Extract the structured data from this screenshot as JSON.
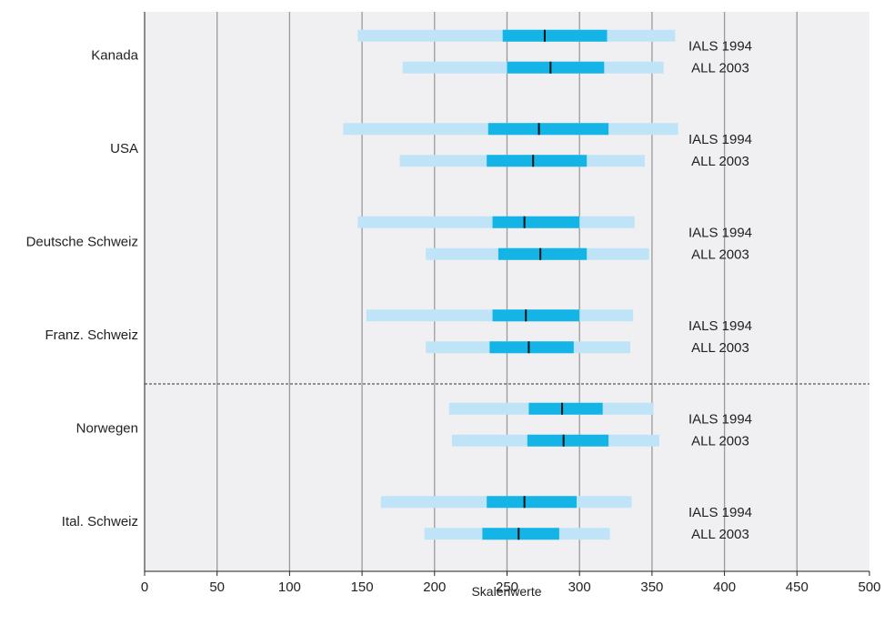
{
  "chart_data": {
    "type": "bar",
    "orientation": "horizontal",
    "xlabel": "Skalenwerte",
    "xlim": [
      0,
      500
    ],
    "xticks": [
      0,
      50,
      100,
      150,
      200,
      250,
      300,
      350,
      400,
      450,
      500
    ],
    "grid": true,
    "series_names": [
      "IALS 1994",
      "ALL 2003"
    ],
    "categories": [
      "Kanada",
      "USA",
      "Deutsche Schweiz",
      "Franz. Schweiz",
      "Norwegen",
      "Ital. Schweiz"
    ],
    "separator_after": "Franz. Schweiz",
    "colors": {
      "background": "#f0f0f2",
      "outer_range": "#bfe4f7",
      "inner_range": "#14b4e6",
      "median": "#111111",
      "grid": "#9a9a9a"
    },
    "groups": [
      {
        "category": "Kanada",
        "rows": [
          {
            "series": "IALS 1994",
            "p5": 147,
            "p25": 247,
            "median": 276,
            "p75": 319,
            "p95": 366
          },
          {
            "series": "ALL 2003",
            "p5": 178,
            "p25": 250,
            "median": 280,
            "p75": 317,
            "p95": 358
          }
        ]
      },
      {
        "category": "USA",
        "rows": [
          {
            "series": "IALS 1994",
            "p5": 137,
            "p25": 237,
            "median": 272,
            "p75": 320,
            "p95": 368
          },
          {
            "series": "ALL 2003",
            "p5": 176,
            "p25": 236,
            "median": 268,
            "p75": 305,
            "p95": 345
          }
        ]
      },
      {
        "category": "Deutsche Schweiz",
        "rows": [
          {
            "series": "IALS 1994",
            "p5": 147,
            "p25": 240,
            "median": 262,
            "p75": 300,
            "p95": 338
          }
        ]
      },
      {
        "category": "Deutsche Schweiz",
        "rows": [
          {
            "series": "ALL 2003",
            "p5": 194,
            "p25": 244,
            "median": 273,
            "p75": 305,
            "p95": 348
          }
        ]
      },
      {
        "category": "Franz. Schweiz",
        "rows": [
          {
            "series": "IALS 1994",
            "p5": 153,
            "p25": 240,
            "median": 263,
            "p75": 300,
            "p95": 337
          },
          {
            "series": "ALL 2003",
            "p5": 194,
            "p25": 238,
            "median": 265,
            "p75": 296,
            "p95": 335
          }
        ]
      },
      {
        "category": "Norwegen",
        "rows": [
          {
            "series": "IALS 1994",
            "p5": 210,
            "p25": 265,
            "median": 288,
            "p75": 316,
            "p95": 351
          },
          {
            "series": "ALL 2003",
            "p5": 212,
            "p25": 264,
            "median": 289,
            "p75": 320,
            "p95": 355
          }
        ]
      },
      {
        "category": "Ital. Schweiz",
        "rows": [
          {
            "series": "IALS 1994",
            "p5": 163,
            "p25": 236,
            "median": 262,
            "p75": 298,
            "p95": 336
          },
          {
            "series": "ALL 2003",
            "p5": 193,
            "p25": 233,
            "median": 258,
            "p75": 286,
            "p95": 321
          }
        ]
      }
    ]
  }
}
